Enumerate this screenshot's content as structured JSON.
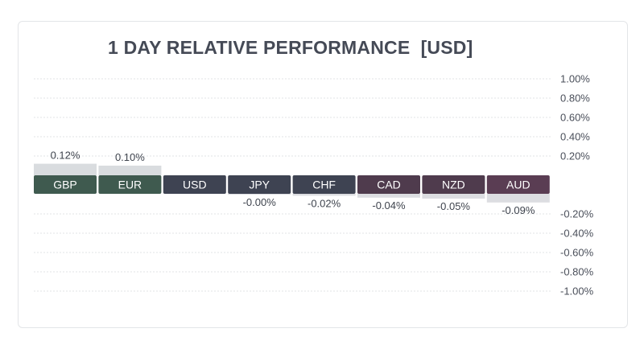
{
  "chart_data": {
    "type": "bar",
    "title": "1 DAY RELATIVE PERFORMANCE  [USD]",
    "categories": [
      "GBP",
      "EUR",
      "USD",
      "JPY",
      "CHF",
      "CAD",
      "NZD",
      "AUD"
    ],
    "values": [
      0.12,
      0.1,
      0.0,
      -0.001,
      -0.02,
      -0.04,
      -0.05,
      -0.09
    ],
    "value_labels": [
      "0.12%",
      "0.10%",
      "",
      "-0.00%",
      "-0.02%",
      "-0.04%",
      "-0.05%",
      "-0.09%"
    ],
    "positive_ticks": [
      "1.00%",
      "0.80%",
      "0.60%",
      "0.40%",
      "0.20%"
    ],
    "negative_ticks": [
      "-0.20%",
      "-0.40%",
      "-0.60%",
      "-0.80%",
      "-1.00%"
    ],
    "ylim": [
      -1.0,
      1.0
    ],
    "grid": true,
    "colors": {
      "GBP": "#3f5a4f",
      "EUR": "#3f5a4f",
      "USD": "#3e4352",
      "JPY": "#3e4352",
      "CHF": "#3e4352",
      "CAD": "#4f3b4d",
      "NZD": "#4f3b4d",
      "AUD": "#5a3d53",
      "positive_bar": "#d9dcdf",
      "negative_bar": "#dcdde1",
      "grid": "#e1e3e6",
      "tick_text": "#4a4f5a",
      "title_text": "#454a56"
    }
  }
}
